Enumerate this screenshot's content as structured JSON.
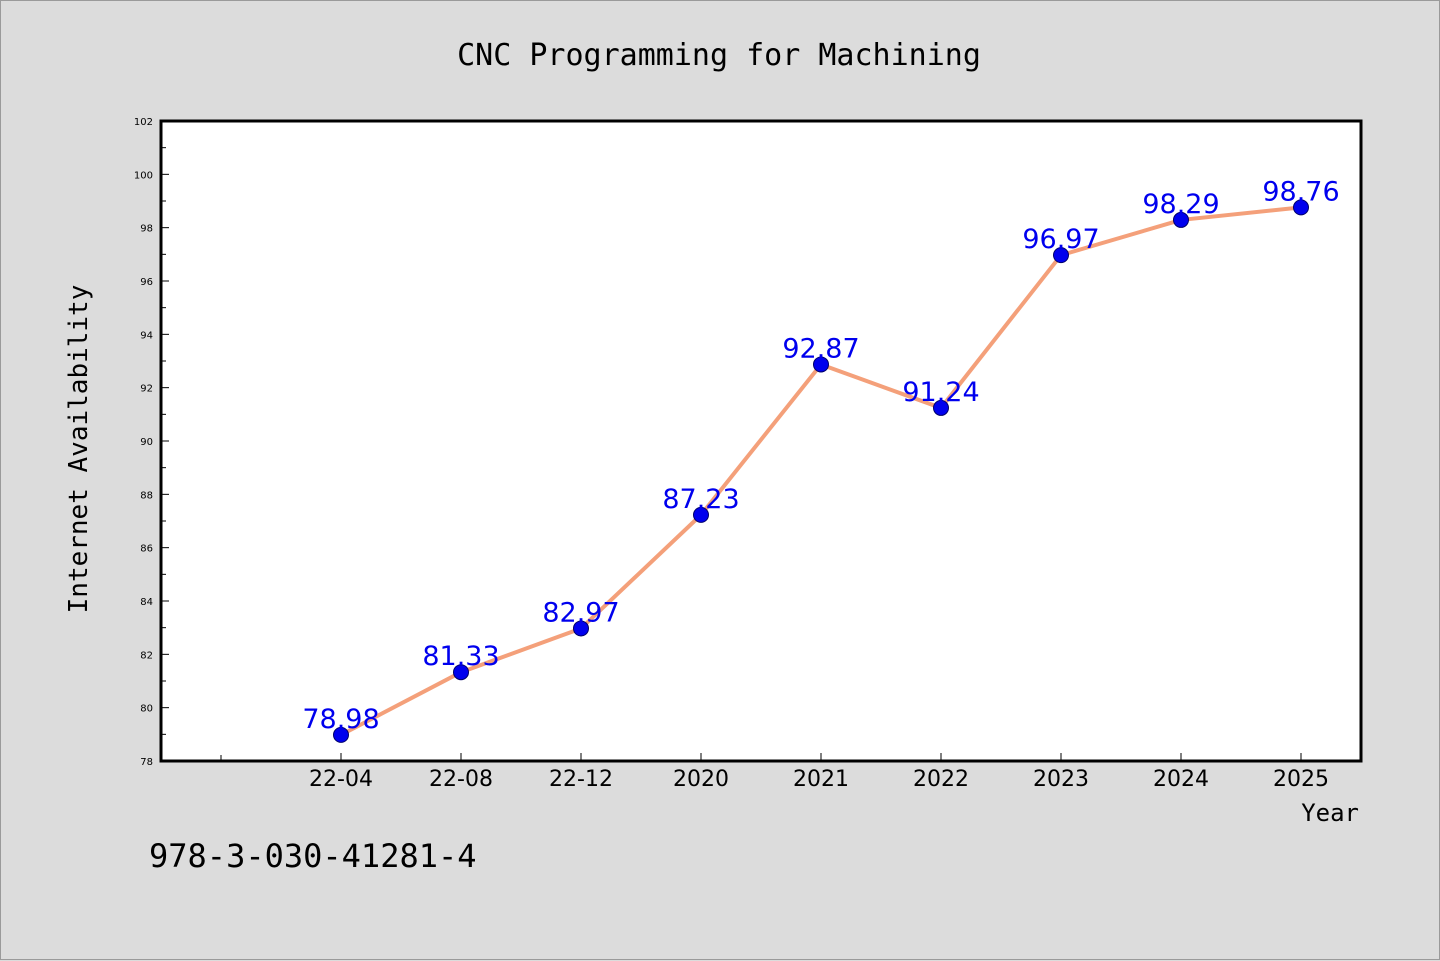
{
  "chart_data": {
    "type": "line",
    "title": "CNC Programming for Machining",
    "xlabel": "Year",
    "ylabel": "Internet Availability",
    "categories": [
      "22-04",
      "22-08",
      "22-12",
      "2020",
      "2021",
      "2022",
      "2023",
      "2024",
      "2025"
    ],
    "series": [
      {
        "values": [
          78.98,
          81.33,
          82.97,
          87.23,
          92.87,
          91.24,
          96.97,
          98.29,
          98.76
        ]
      }
    ],
    "data_labels": [
      "78.98",
      "81.33",
      "82.97",
      "87.23",
      "92.87",
      "91.24",
      "96.97",
      "98.29",
      "98.76"
    ],
    "ylim": [
      78,
      102
    ],
    "yticks": [
      78,
      80,
      82,
      84,
      86,
      88,
      90,
      92,
      94,
      96,
      98,
      100,
      102
    ],
    "grid": false,
    "legend": "none",
    "colors": {
      "line": "#f4a07a",
      "marker": "#0000ee",
      "marker_edge": "#00006a",
      "data_label": "#0000ee",
      "background": "#dcdcdc",
      "plot_area": "#ffffff",
      "axis": "#000000"
    }
  },
  "footer_note": "978-3-030-41281-4"
}
